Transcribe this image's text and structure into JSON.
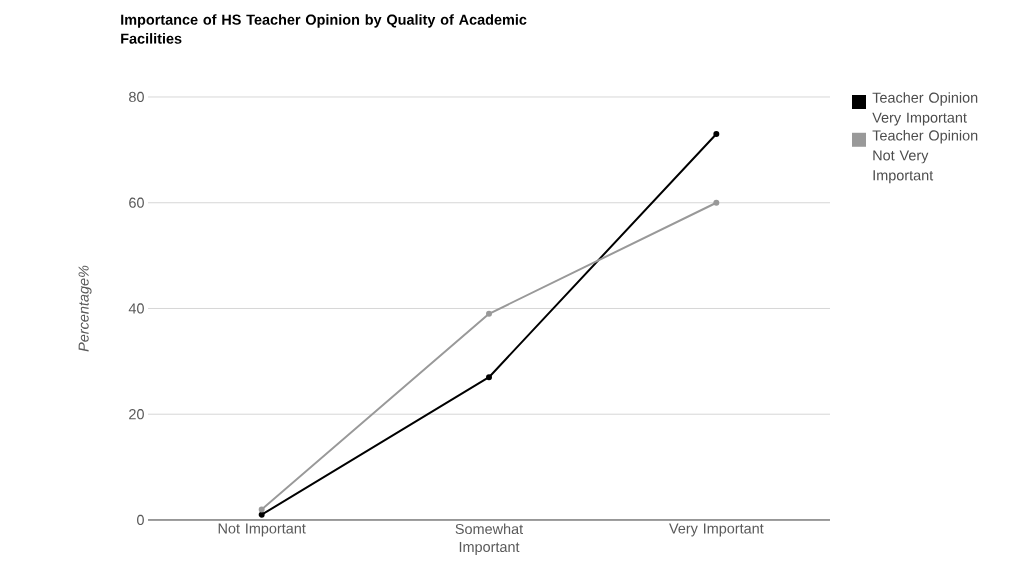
{
  "chart_data": {
    "type": "line",
    "title": "Importance of HS Teacher Opinion by Quality of Academic Facilities",
    "ylabel": "Percentage%",
    "categories": [
      "Not Important",
      "Somewhat Important",
      "Very Important"
    ],
    "series": [
      {
        "name": "Teacher Opinion Very Important",
        "color": "#000000",
        "values": [
          1,
          27,
          73
        ]
      },
      {
        "name": "Teacher Opinion Not Very Important",
        "color": "#999999",
        "values": [
          2,
          39,
          60
        ]
      }
    ],
    "ylim": [
      0,
      80
    ],
    "yticks": [
      0,
      20,
      40,
      60,
      80
    ],
    "grid": "y",
    "legend": "right",
    "marker": "circle"
  }
}
